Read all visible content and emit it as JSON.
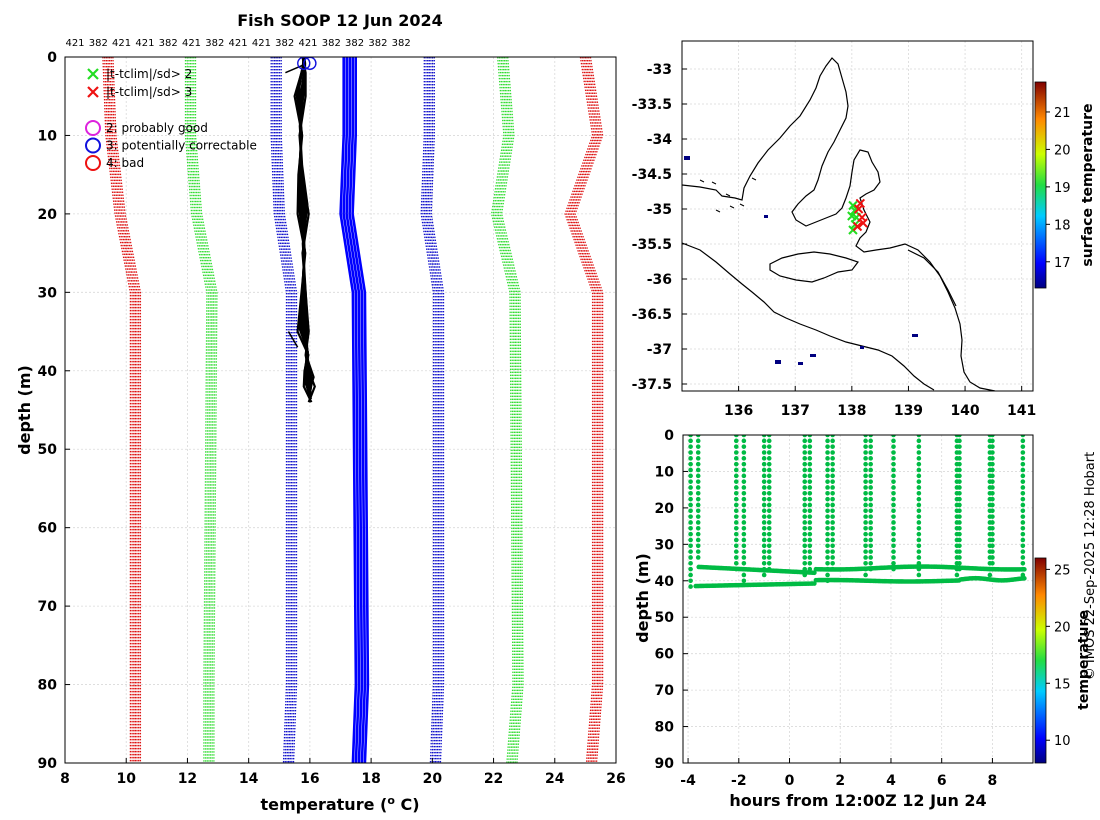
{
  "title": "Fish SOOP 12 Jun 2024",
  "watermark": "© IMOS 22-Sep-2025 12:28 Hobart",
  "chart_data": [
    {
      "id": "profile",
      "type": "line",
      "xlabel": "temperature (° C)",
      "ylabel": "depth (m)",
      "xlim": [
        8,
        26
      ],
      "ylim": [
        90,
        0
      ],
      "xticks": [
        8,
        10,
        12,
        14,
        16,
        18,
        20,
        22,
        24,
        26
      ],
      "yticks": [
        0,
        10,
        20,
        30,
        40,
        50,
        60,
        70,
        80,
        90
      ],
      "top_labels": [
        "421",
        "382",
        "421",
        "421",
        "382",
        "421",
        "382",
        "421",
        "421",
        "382",
        "421",
        "382",
        "382",
        "382",
        "382"
      ],
      "legend": [
        {
          "marker": "x",
          "color": "#22dd22",
          "label": "|t-tclim|/sd> 2"
        },
        {
          "marker": "x",
          "color": "#ee1111",
          "label": "|t-tclim|/sd> 3"
        },
        {
          "marker": "o",
          "color": "#dd22dd",
          "label": "2: probably good"
        },
        {
          "marker": "o",
          "color": "#1111dd",
          "label": "3: potentially correctable"
        },
        {
          "marker": "o",
          "color": "#ee1111",
          "label": "4: bad"
        }
      ],
      "climatology": [
        {
          "name": "clim -3sd left",
          "color": "#dd1111",
          "depth": [
            0,
            10,
            20,
            30,
            80,
            90
          ],
          "temp": [
            9.4,
            9.5,
            9.8,
            10.3,
            10.3,
            10.3
          ]
        },
        {
          "name": "clim -2sd left",
          "color": "#33dd33",
          "depth": [
            0,
            10,
            20,
            30,
            80,
            90
          ],
          "temp": [
            12.1,
            12.1,
            12.3,
            12.8,
            12.7,
            12.7
          ]
        },
        {
          "name": "clim -1sd left",
          "color": "#1111cc",
          "depth": [
            0,
            10,
            20,
            30,
            80,
            90
          ],
          "temp": [
            14.9,
            14.9,
            15.0,
            15.4,
            15.4,
            15.3
          ]
        },
        {
          "name": "clim -1sd right",
          "color": "#1111cc",
          "depth": [
            0,
            10,
            20,
            30,
            80,
            90
          ],
          "temp": [
            19.9,
            19.9,
            19.8,
            20.2,
            20.2,
            20.1
          ]
        },
        {
          "name": "clim +2sd right",
          "color": "#33dd33",
          "depth": [
            0,
            10,
            20,
            30,
            80,
            90
          ],
          "temp": [
            22.3,
            22.5,
            22.1,
            22.7,
            22.8,
            22.6
          ]
        },
        {
          "name": "clim +3sd right",
          "color": "#dd1111",
          "depth": [
            0,
            10,
            20,
            30,
            80,
            90
          ],
          "temp": [
            25.0,
            25.4,
            24.5,
            25.4,
            25.4,
            25.2
          ]
        }
      ],
      "mean": {
        "name": "climatology mean",
        "color": "#0000ff",
        "depth": [
          0,
          10,
          20,
          30,
          80,
          90
        ],
        "temp": [
          17.3,
          17.3,
          17.2,
          17.6,
          17.7,
          17.6
        ]
      },
      "profiles": {
        "name": "observed profiles",
        "color": "#000000",
        "depth": [
          0,
          2,
          5,
          10,
          15,
          20,
          25,
          30,
          35,
          38,
          40,
          42,
          44
        ],
        "temp": [
          15.8,
          15.8,
          15.7,
          15.7,
          15.7,
          15.8,
          15.8,
          15.8,
          15.8,
          15.9,
          15.9,
          16.0,
          16.0
        ]
      },
      "flags": [
        {
          "depth": 0.8,
          "temp": 15.8
        },
        {
          "depth": 0.8,
          "temp": 16.0
        }
      ]
    },
    {
      "id": "map",
      "type": "scatter",
      "xlim": [
        135.0,
        141.2
      ],
      "ylim": [
        -37.6,
        -32.6
      ],
      "xticks": [
        136,
        137,
        138,
        139,
        140,
        141
      ],
      "yticks": [
        -33,
        -33.5,
        -34,
        -34.5,
        -35,
        -35.5,
        -36,
        -36.5,
        -37,
        -37.5
      ],
      "colorbar": {
        "label": "surface temperature",
        "range": [
          16.3,
          21.8
        ],
        "ticks": [
          17,
          18,
          19,
          20,
          21
        ]
      },
      "green_marks": [
        [
          138.02,
          -34.95
        ],
        [
          138.05,
          -35.02
        ],
        [
          138.0,
          -35.1
        ],
        [
          138.06,
          -35.22
        ],
        [
          138.02,
          -35.3
        ],
        [
          138.08,
          -35.12
        ]
      ],
      "red_marks": [
        [
          138.12,
          -35.0
        ],
        [
          138.18,
          -35.12
        ],
        [
          138.2,
          -35.2
        ],
        [
          138.1,
          -35.25
        ],
        [
          138.15,
          -34.92
        ]
      ]
    },
    {
      "id": "timeseries",
      "type": "scatter",
      "xlabel": "hours from 12:00Z 12 Jun 24",
      "ylabel": "depth (m)",
      "xlim": [
        -4.2,
        9.6
      ],
      "ylim": [
        90,
        0
      ],
      "xticks": [
        -4,
        -2,
        0,
        2,
        4,
        6,
        8
      ],
      "yticks": [
        0,
        10,
        20,
        30,
        40,
        50,
        60,
        70,
        80,
        90
      ],
      "colorbar": {
        "label": "temperature",
        "range": [
          8,
          26
        ],
        "ticks": [
          10,
          15,
          20,
          25
        ]
      },
      "point_color": "#00bb44",
      "casts": [
        {
          "t": -3.9,
          "bottom": 42.0
        },
        {
          "t": -3.6,
          "bottom": 35.0
        },
        {
          "t": -2.1,
          "bottom": 37.0
        },
        {
          "t": -1.8,
          "bottom": 41.5
        },
        {
          "t": -1.0,
          "bottom": 40.0
        },
        {
          "t": -0.8,
          "bottom": 38.0
        },
        {
          "t": 0.6,
          "bottom": 39.5
        },
        {
          "t": 0.8,
          "bottom": 37.5
        },
        {
          "t": 1.5,
          "bottom": 41.0
        },
        {
          "t": 1.7,
          "bottom": 37.0
        },
        {
          "t": 3.0,
          "bottom": 40.0
        },
        {
          "t": 3.2,
          "bottom": 37.0
        },
        {
          "t": 4.1,
          "bottom": 37.0
        },
        {
          "t": 5.1,
          "bottom": 38.5
        },
        {
          "t": 6.6,
          "bottom": 39.0
        },
        {
          "t": 6.7,
          "bottom": 37.0
        },
        {
          "t": 7.9,
          "bottom": 40.0
        },
        {
          "t": 8.0,
          "bottom": 37.5
        },
        {
          "t": 9.2,
          "bottom": 39.5
        }
      ]
    }
  ]
}
